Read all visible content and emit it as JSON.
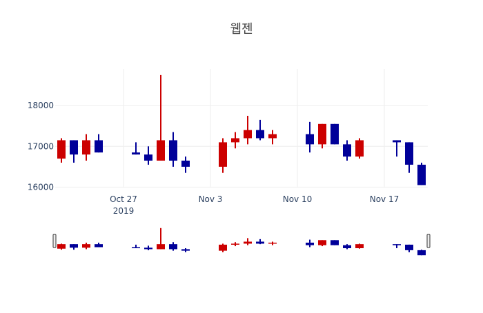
{
  "chart_data": {
    "type": "candlestick",
    "title": "웹젠",
    "xlabel": "",
    "ylabel": "",
    "x_ticks": [
      {
        "date": "2019-10-27",
        "label": "Oct 27",
        "sublabel": "2019"
      },
      {
        "date": "2019-11-03",
        "label": "Nov 3"
      },
      {
        "date": "2019-11-10",
        "label": "Nov 10"
      },
      {
        "date": "2019-11-17",
        "label": "Nov 17"
      }
    ],
    "y_ticks": [
      16000,
      17000,
      18000
    ],
    "xlim": [
      "2019-10-21T12:00",
      "2019-11-20T12:00"
    ],
    "ylim": [
      15990,
      18900
    ],
    "grid": true,
    "increasing_color": "#cc0000",
    "decreasing_color": "#000099",
    "rangeslider": true,
    "candles": [
      {
        "date": "2019-10-22",
        "open": 16700,
        "high": 17200,
        "low": 16600,
        "close": 17150
      },
      {
        "date": "2019-10-23",
        "open": 17150,
        "high": 17150,
        "low": 16600,
        "close": 16800
      },
      {
        "date": "2019-10-24",
        "open": 16800,
        "high": 17300,
        "low": 16650,
        "close": 17150
      },
      {
        "date": "2019-10-25",
        "open": 17150,
        "high": 17300,
        "low": 16850,
        "close": 16850
      },
      {
        "date": "2019-10-28",
        "open": 16850,
        "high": 17100,
        "low": 16800,
        "close": 16800
      },
      {
        "date": "2019-10-29",
        "open": 16800,
        "high": 17000,
        "low": 16550,
        "close": 16650
      },
      {
        "date": "2019-10-30",
        "open": 16650,
        "high": 18750,
        "low": 16650,
        "close": 17150
      },
      {
        "date": "2019-10-31",
        "open": 17150,
        "high": 17350,
        "low": 16500,
        "close": 16650
      },
      {
        "date": "2019-11-01",
        "open": 16650,
        "high": 16750,
        "low": 16350,
        "close": 16500
      },
      {
        "date": "2019-11-04",
        "open": 16500,
        "high": 17200,
        "low": 16350,
        "close": 17100
      },
      {
        "date": "2019-11-05",
        "open": 17100,
        "high": 17350,
        "low": 16950,
        "close": 17200
      },
      {
        "date": "2019-11-06",
        "open": 17200,
        "high": 17750,
        "low": 17050,
        "close": 17400
      },
      {
        "date": "2019-11-07",
        "open": 17400,
        "high": 17650,
        "low": 17150,
        "close": 17200
      },
      {
        "date": "2019-11-08",
        "open": 17200,
        "high": 17400,
        "low": 17050,
        "close": 17300
      },
      {
        "date": "2019-11-11",
        "open": 17300,
        "high": 17600,
        "low": 16850,
        "close": 17050
      },
      {
        "date": "2019-11-12",
        "open": 17050,
        "high": 17550,
        "low": 16950,
        "close": 17550
      },
      {
        "date": "2019-11-13",
        "open": 17550,
        "high": 17550,
        "low": 17050,
        "close": 17050
      },
      {
        "date": "2019-11-14",
        "open": 17050,
        "high": 17150,
        "low": 16650,
        "close": 16750
      },
      {
        "date": "2019-11-15",
        "open": 16750,
        "high": 17200,
        "low": 16700,
        "close": 17150
      },
      {
        "date": "2019-11-18",
        "open": 17150,
        "high": 17150,
        "low": 16750,
        "close": 17100
      },
      {
        "date": "2019-11-19",
        "open": 17100,
        "high": 17100,
        "low": 16350,
        "close": 16550
      },
      {
        "date": "2019-11-20",
        "open": 16550,
        "high": 16600,
        "low": 16050,
        "close": 16050
      }
    ]
  }
}
